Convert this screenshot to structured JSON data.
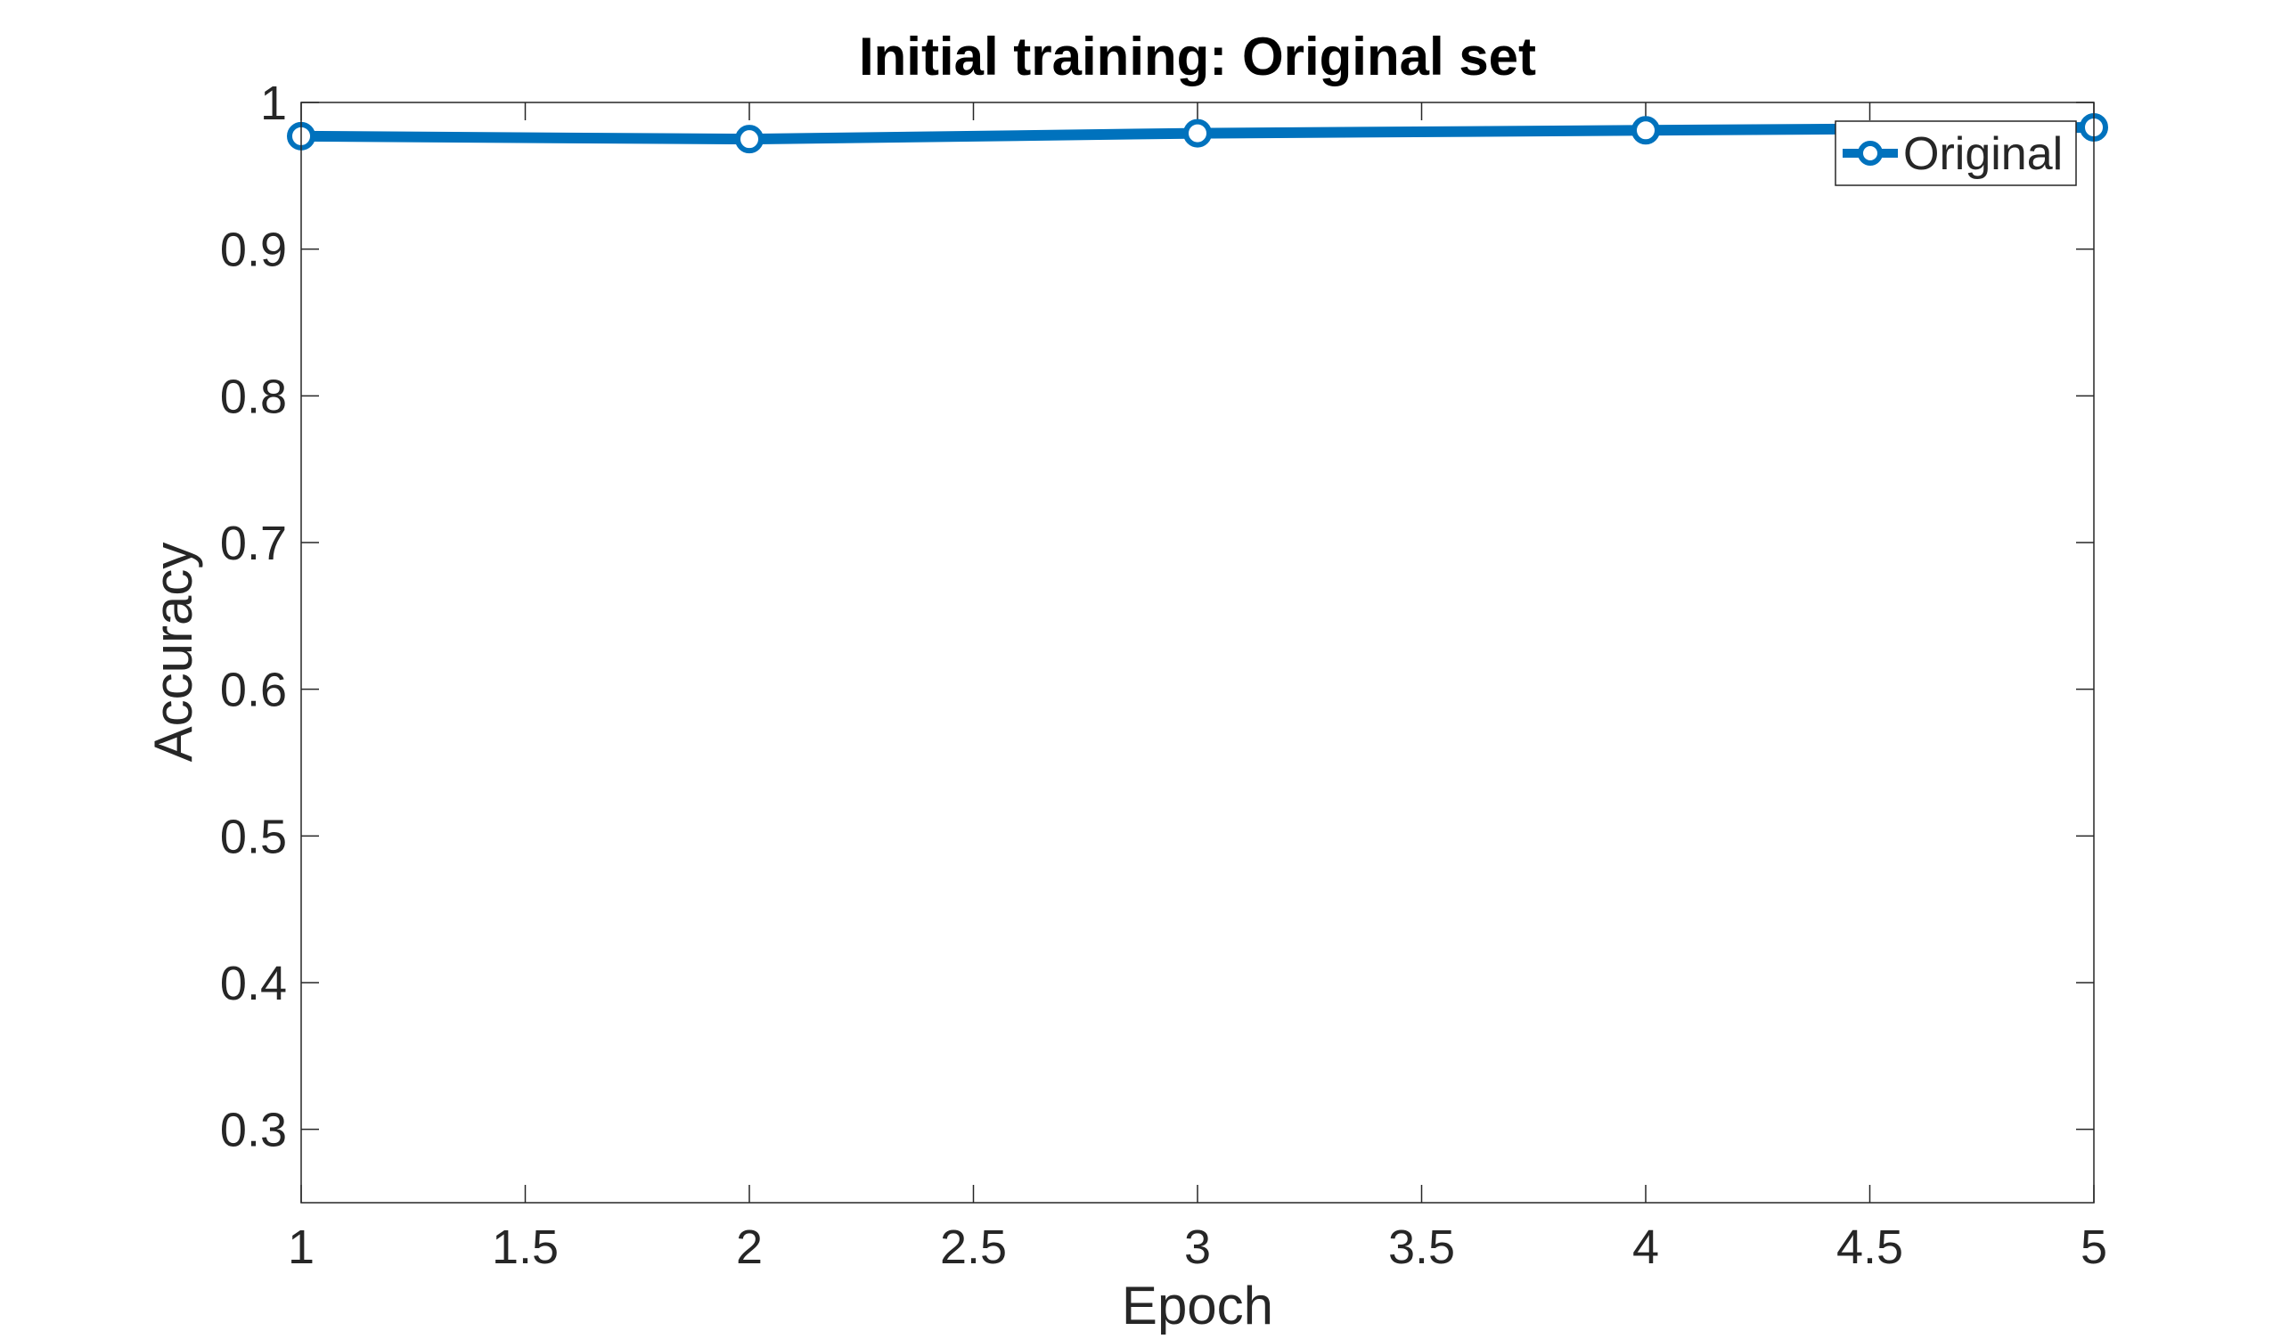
{
  "chart_data": {
    "type": "line",
    "title": "Initial training: Original set",
    "xlabel": "Epoch",
    "ylabel": "Accuracy",
    "xlim": [
      1,
      5
    ],
    "ylim": [
      0.25,
      1.0
    ],
    "xticks": [
      "1",
      "1.5",
      "2",
      "2.5",
      "3",
      "3.5",
      "4",
      "4.5",
      "5"
    ],
    "yticks": [
      "0.3",
      "0.4",
      "0.5",
      "0.6",
      "0.7",
      "0.8",
      "0.9",
      "1"
    ],
    "grid": false,
    "legend_position": "top-right",
    "series": [
      {
        "name": "Original",
        "color": "#0072BD",
        "marker": "circle",
        "x": [
          1,
          2,
          3,
          4,
          5
        ],
        "y": [
          0.977,
          0.975,
          0.979,
          0.981,
          0.983
        ]
      }
    ]
  }
}
